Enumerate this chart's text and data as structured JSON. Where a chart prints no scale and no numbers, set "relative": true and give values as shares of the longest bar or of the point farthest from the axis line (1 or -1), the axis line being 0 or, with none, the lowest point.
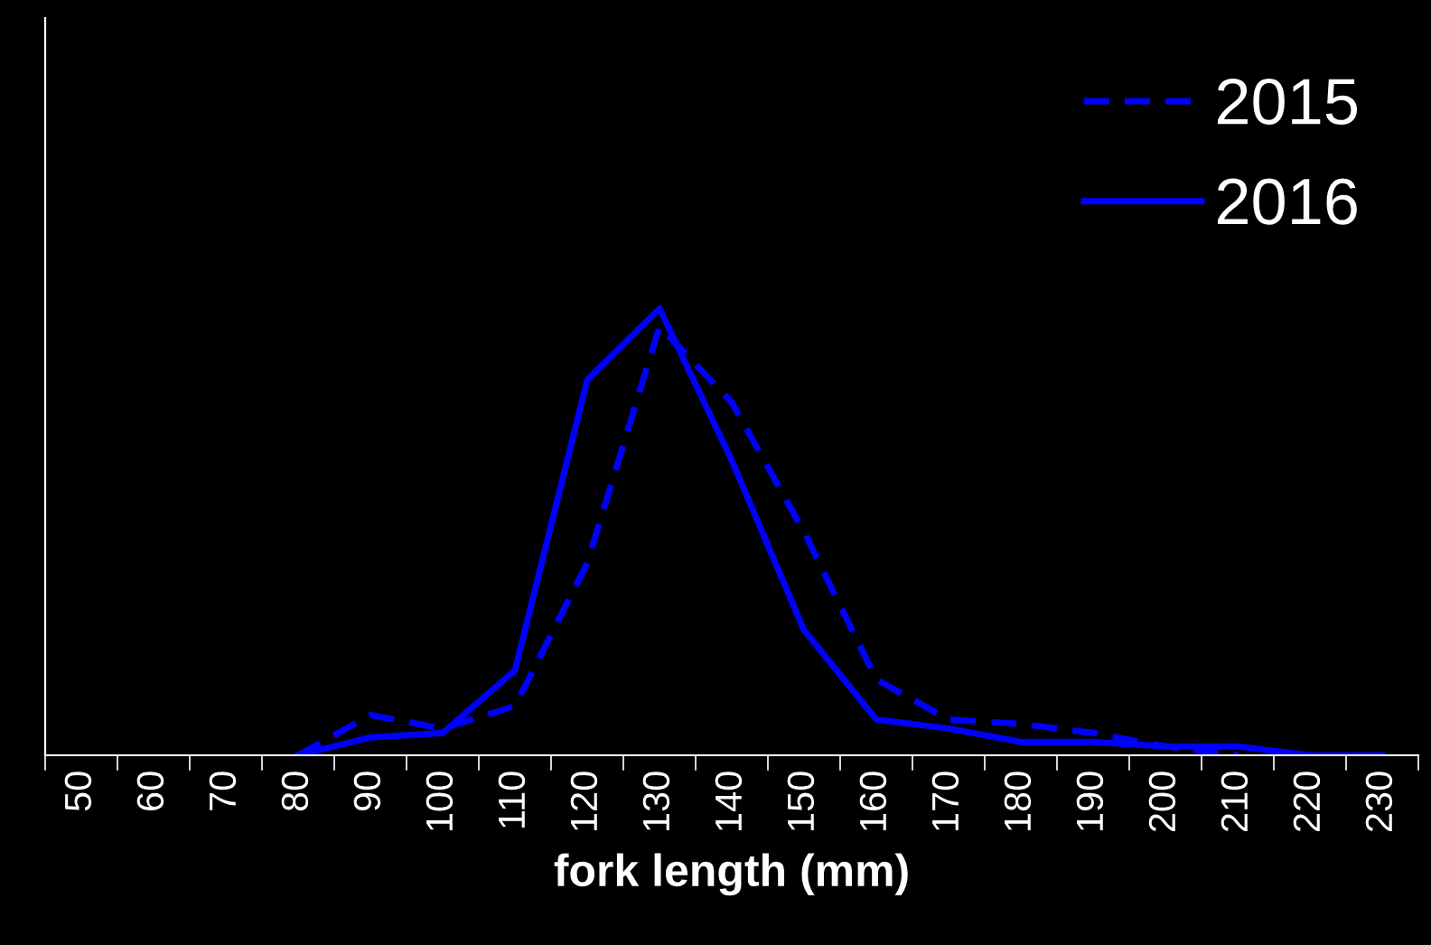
{
  "chart_data": {
    "type": "line",
    "relative": true,
    "xlabel": "fork length (mm)",
    "categories": [
      "50",
      "60",
      "70",
      "80",
      "90",
      "100",
      "110",
      "120",
      "130",
      "140",
      "150",
      "160",
      "170",
      "180",
      "190",
      "200",
      "210",
      "220",
      "230"
    ],
    "series": [
      {
        "name": "2015",
        "color": "#0000ff",
        "line_style": "dashed",
        "values": [
          null,
          null,
          null,
          0,
          0.09,
          0.06,
          0.11,
          0.43,
          0.96,
          0.79,
          0.5,
          0.17,
          0.08,
          0.07,
          0.05,
          0.02,
          0,
          null,
          null
        ]
      },
      {
        "name": "2016",
        "color": "#0000ff",
        "line_style": "solid",
        "values": [
          null,
          null,
          null,
          0,
          0.04,
          0.05,
          0.19,
          0.84,
          1,
          0.66,
          0.28,
          0.08,
          0.06,
          0.03,
          0.03,
          0.02,
          0.02,
          0,
          0
        ]
      }
    ],
    "legend": "top right",
    "grid": false,
    "marker": "none"
  }
}
